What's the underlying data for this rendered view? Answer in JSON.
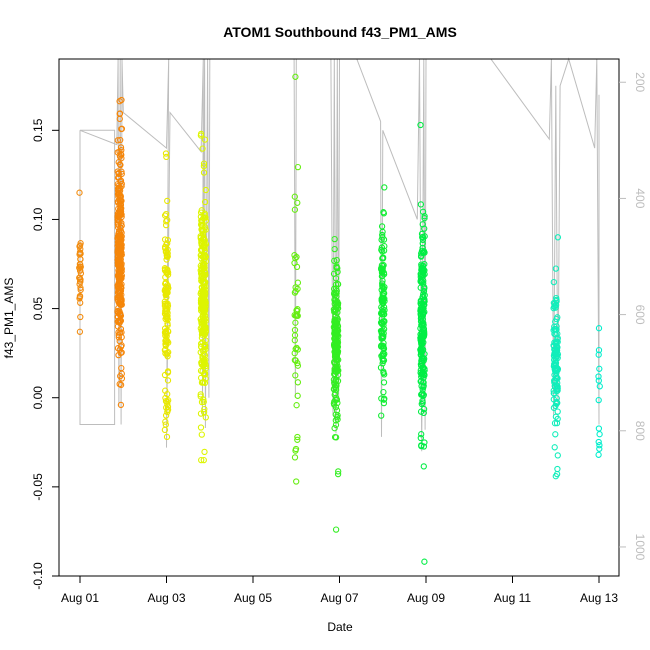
{
  "chart_data": {
    "type": "scatter",
    "title": "ATOM1 Southbound f43_PM1_AMS",
    "xlabel": "Date",
    "ylabel": "f43_PM1_AMS",
    "xlim": [
      0.0,
      12.5
    ],
    "ylim": [
      -0.1,
      0.19
    ],
    "x_ticks": [
      {
        "value": 0,
        "label": "Aug 01"
      },
      {
        "value": 2,
        "label": "Aug 03"
      },
      {
        "value": 4,
        "label": "Aug 05"
      },
      {
        "value": 6,
        "label": "Aug 07"
      },
      {
        "value": 8,
        "label": "Aug 09"
      },
      {
        "value": 10,
        "label": "Aug 11"
      },
      {
        "value": 12,
        "label": "Aug 13"
      }
    ],
    "y_ticks": [
      -0.1,
      -0.05,
      0.0,
      0.05,
      0.1,
      0.15
    ],
    "y_tick_labels": [
      "-0.10",
      "-0.05",
      "0.00",
      "0.05",
      "0.10",
      "0.15"
    ],
    "y2_lim": [
      1050,
      160
    ],
    "y2_ticks": [
      200,
      400,
      600,
      800,
      1000
    ],
    "y2_tick_labels": [
      "200",
      "400",
      "600",
      "800",
      "1000"
    ],
    "altitude_line_color": "#bdbdbd",
    "clusters": [
      {
        "x": 0.0,
        "x_spread": 0.02,
        "ymin": 0.037,
        "ymax": 0.115,
        "ymean": 0.07,
        "ysd": 0.012,
        "n": 35,
        "color": "#F28C0F"
      },
      {
        "x": 0.92,
        "x_spread": 0.05,
        "ymin": -0.004,
        "ymax": 0.167,
        "ymean": 0.08,
        "ysd": 0.03,
        "n": 300,
        "color": "#F5860A"
      },
      {
        "x": 2.0,
        "x_spread": 0.04,
        "ymin": -0.022,
        "ymax": 0.137,
        "ymean": 0.045,
        "ysd": 0.028,
        "n": 130,
        "color": "#E8E800"
      },
      {
        "x": 2.85,
        "x_spread": 0.06,
        "ymin": -0.035,
        "ymax": 0.148,
        "ymean": 0.055,
        "ysd": 0.03,
        "n": 280,
        "color": "#DDF500"
      },
      {
        "x": 5.0,
        "x_spread": 0.04,
        "ymin": -0.047,
        "ymax": 0.18,
        "ymean": 0.04,
        "ysd": 0.035,
        "n": 45,
        "color": "#66EE11"
      },
      {
        "x": 5.92,
        "x_spread": 0.05,
        "ymin": -0.074,
        "ymax": 0.089,
        "ymean": 0.03,
        "ysd": 0.025,
        "n": 200,
        "color": "#33EE22"
      },
      {
        "x": 7.0,
        "x_spread": 0.04,
        "ymin": -0.01,
        "ymax": 0.118,
        "ymean": 0.045,
        "ysd": 0.025,
        "n": 120,
        "color": "#11EE33"
      },
      {
        "x": 7.92,
        "x_spread": 0.05,
        "ymin": -0.092,
        "ymax": 0.153,
        "ymean": 0.04,
        "ysd": 0.03,
        "n": 200,
        "color": "#00EE44"
      },
      {
        "x": 11.0,
        "x_spread": 0.05,
        "ymin": -0.044,
        "ymax": 0.09,
        "ymean": 0.02,
        "ysd": 0.02,
        "n": 120,
        "color": "#11EEBB"
      },
      {
        "x": 12.0,
        "x_spread": 0.02,
        "ymin": -0.032,
        "ymax": 0.039,
        "ymean": 0.0,
        "ysd": 0.018,
        "n": 14,
        "color": "#00EECC"
      }
    ],
    "altitude_track": [
      [
        0.0,
        0.15
      ],
      [
        0.0,
        -0.015
      ],
      [
        0.8,
        -0.015
      ],
      [
        0.8,
        0.15
      ],
      [
        0.0,
        0.15
      ],
      [
        0.85,
        0.142
      ],
      [
        0.88,
        0.19
      ],
      [
        0.9,
        -0.005
      ],
      [
        0.93,
        0.19
      ],
      [
        0.95,
        -0.015
      ],
      [
        0.97,
        0.19
      ],
      [
        1.0,
        0.16
      ],
      [
        2.0,
        0.14
      ],
      [
        2.05,
        0.19
      ],
      [
        2.0,
        -0.028
      ],
      [
        2.08,
        0.16
      ],
      [
        2.8,
        0.138
      ],
      [
        2.85,
        0.19
      ],
      [
        2.83,
        -0.01
      ],
      [
        2.88,
        0.19
      ],
      [
        2.9,
        -0.017
      ],
      [
        2.95,
        0.19
      ],
      [
        2.98,
        0.0
      ],
      [
        3.0,
        0.19
      ],
      [
        2.98,
        0.19
      ],
      [
        3.5,
        0.19
      ],
      [
        4.95,
        0.19
      ],
      [
        4.98,
        0.0
      ],
      [
        5.0,
        0.19
      ],
      [
        5.8,
        0.19
      ],
      [
        5.85,
        -0.01
      ],
      [
        5.88,
        0.19
      ],
      [
        5.92,
        -0.02
      ],
      [
        5.95,
        0.19
      ],
      [
        5.98,
        0.0
      ],
      [
        6.0,
        0.19
      ],
      [
        6.4,
        0.19
      ],
      [
        6.95,
        0.155
      ],
      [
        6.97,
        -0.022
      ],
      [
        7.0,
        0.15
      ],
      [
        7.8,
        0.1
      ],
      [
        7.85,
        0.19
      ],
      [
        7.9,
        -0.03
      ],
      [
        7.95,
        0.19
      ],
      [
        7.98,
        -0.018
      ],
      [
        8.0,
        0.19
      ],
      [
        8.2,
        0.19
      ],
      [
        9.5,
        0.19
      ],
      [
        10.85,
        0.145
      ],
      [
        10.9,
        0.19
      ],
      [
        10.95,
        -0.01
      ],
      [
        11.0,
        0.175
      ],
      [
        11.05,
        -0.005
      ],
      [
        11.1,
        0.175
      ],
      [
        11.3,
        0.19
      ],
      [
        11.9,
        0.14
      ],
      [
        11.95,
        0.19
      ],
      [
        12.0,
        -0.015
      ],
      [
        12.0,
        0.17
      ]
    ]
  }
}
